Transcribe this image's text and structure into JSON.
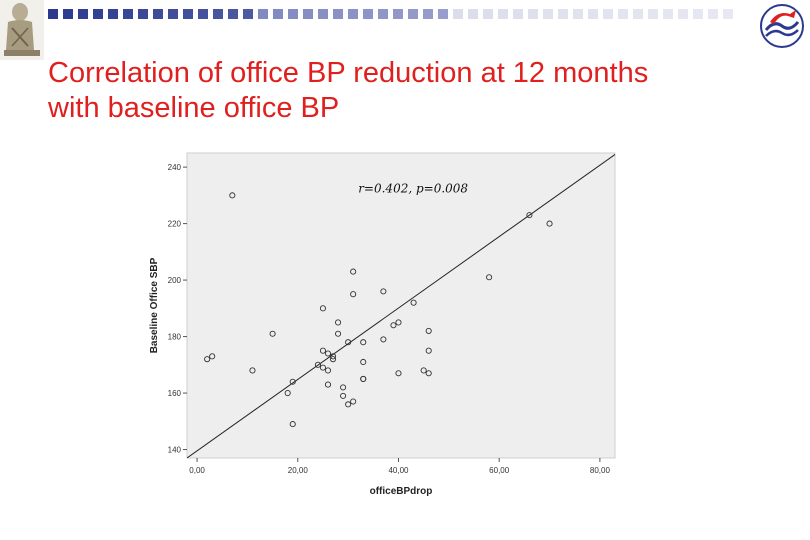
{
  "page": {
    "title_line1": "Correlation of office BP reduction at 12 months",
    "title_line2": "with baseline office BP",
    "accent_color": "#e0201e",
    "band_colors": [
      "#2b3a8f",
      "#6670b4",
      "#c9cce3"
    ]
  },
  "logos": {
    "left": "statue-logo-icon",
    "right": "society-emblem-icon"
  },
  "chart_data": {
    "type": "scatter",
    "xlabel": "officeBPdrop",
    "ylabel": "Baseline Office SBP",
    "annotation": "r=0.402, p=0.008",
    "xlim": [
      -2,
      83
    ],
    "ylim": [
      137,
      245
    ],
    "x_ticks": [
      0,
      20,
      40,
      60,
      80
    ],
    "x_tick_labels": [
      "0,00",
      "20,00",
      "40,00",
      "60,00",
      "80,00"
    ],
    "y_ticks": [
      140,
      160,
      180,
      200,
      220,
      240
    ],
    "y_tick_labels": [
      "140",
      "160",
      "180",
      "200",
      "220",
      "240"
    ],
    "grid": false,
    "background": "#eeeeee",
    "fit_line": {
      "x": [
        -2,
        85
      ],
      "y": [
        137,
        247
      ]
    },
    "points": [
      [
        7,
        230
      ],
      [
        66,
        223
      ],
      [
        70,
        220
      ],
      [
        31,
        203
      ],
      [
        58,
        201
      ],
      [
        31,
        195
      ],
      [
        37,
        196
      ],
      [
        25,
        190
      ],
      [
        43,
        192
      ],
      [
        28,
        185
      ],
      [
        39,
        184
      ],
      [
        40,
        185
      ],
      [
        15,
        181
      ],
      [
        28,
        181
      ],
      [
        46,
        182
      ],
      [
        30,
        178
      ],
      [
        33,
        178
      ],
      [
        37,
        179
      ],
      [
        25,
        175
      ],
      [
        27,
        173
      ],
      [
        46,
        175
      ],
      [
        2,
        172
      ],
      [
        3,
        173
      ],
      [
        26,
        174
      ],
      [
        27,
        172
      ],
      [
        33,
        171
      ],
      [
        24,
        170
      ],
      [
        25,
        169
      ],
      [
        26,
        168
      ],
      [
        11,
        168
      ],
      [
        33,
        165
      ],
      [
        40,
        167
      ],
      [
        45,
        168
      ],
      [
        46,
        167
      ],
      [
        19,
        164
      ],
      [
        26,
        163
      ],
      [
        29,
        162
      ],
      [
        18,
        160
      ],
      [
        29,
        159
      ],
      [
        33,
        165
      ],
      [
        31,
        157
      ],
      [
        30,
        156
      ],
      [
        19,
        149
      ]
    ]
  }
}
